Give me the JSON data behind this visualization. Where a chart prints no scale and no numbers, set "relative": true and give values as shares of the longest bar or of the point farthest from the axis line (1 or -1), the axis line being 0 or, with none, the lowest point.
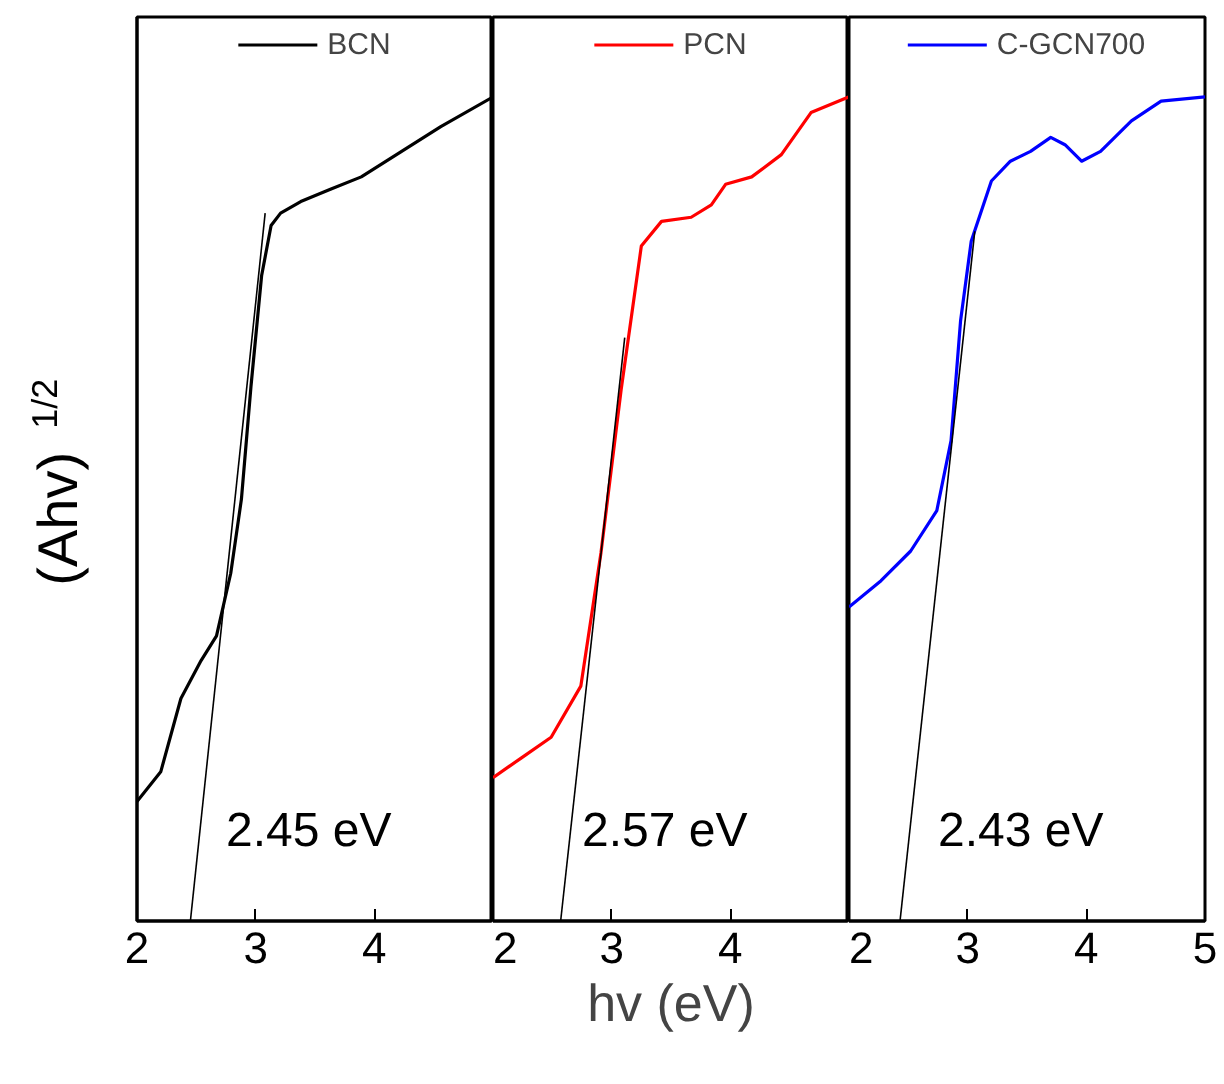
{
  "chart_data": [
    {
      "type": "line",
      "relative": true,
      "xlim": [
        2,
        5
      ],
      "xticks": [
        2,
        3,
        4,
        {
          "value": 5,
          "label": null
        }
      ],
      "tick_labels": "x",
      "legend": "top",
      "ylabel": "(Ahv)$^{1/2}$",
      "series": [
        {
          "name": "BCN",
          "color": "#000000",
          "x": [
            2.0,
            2.2,
            2.37,
            2.54,
            2.67,
            2.79,
            2.88,
            2.96,
            3.05,
            3.13,
            3.21,
            3.38,
            3.63,
            3.89,
            4.22,
            4.56,
            5.0
          ],
          "values": [
            0.145,
            0.181,
            0.27,
            0.316,
            0.346,
            0.422,
            0.512,
            0.648,
            0.783,
            0.844,
            0.859,
            0.873,
            0.888,
            0.903,
            0.933,
            0.964,
            1.0
          ]
        },
        {
          "type": "line",
          "color": "#000000",
          "x": [
            2.45,
            3.08
          ],
          "values": [
            0,
            0.859
          ]
        }
      ],
      "annotations": [
        "2.45 eV"
      ]
    },
    {
      "type": "line",
      "relative": true,
      "xlim": [
        2,
        5
      ],
      "xticks": [
        2,
        3,
        4,
        {
          "value": 5,
          "label": null
        }
      ],
      "tick_labels": "x",
      "legend": "top",
      "xlabel": "hv (eV)",
      "series": [
        {
          "name": "PCN",
          "color": "#ff0000",
          "x": [
            2.0,
            2.24,
            2.49,
            2.74,
            2.91,
            3.08,
            3.25,
            3.42,
            3.67,
            3.84,
            3.96,
            4.18,
            4.43,
            4.68,
            5.0
          ],
          "values": [
            0.174,
            0.198,
            0.223,
            0.285,
            0.447,
            0.645,
            0.819,
            0.849,
            0.854,
            0.869,
            0.894,
            0.903,
            0.93,
            0.981,
            1.0
          ]
        },
        {
          "type": "line",
          "color": "#000000",
          "x": [
            2.57,
            3.11
          ],
          "values": [
            0,
            0.708
          ]
        }
      ],
      "annotations": [
        "2.57 eV"
      ]
    },
    {
      "type": "line",
      "relative": true,
      "xlim": [
        2,
        5
      ],
      "xticks": [
        2,
        3,
        4,
        5
      ],
      "tick_labels": "x",
      "legend": "top",
      "series": [
        {
          "name": "C-GCN700",
          "color": "#0000ff",
          "x": [
            2.0,
            2.27,
            2.52,
            2.74,
            2.86,
            2.94,
            3.03,
            3.2,
            3.36,
            3.53,
            3.7,
            3.82,
            3.96,
            4.12,
            4.38,
            4.63,
            5.0
          ],
          "values": [
            0.381,
            0.413,
            0.449,
            0.498,
            0.583,
            0.728,
            0.825,
            0.898,
            0.922,
            0.934,
            0.951,
            0.942,
            0.922,
            0.934,
            0.971,
            0.995,
            1.0
          ]
        },
        {
          "type": "line",
          "color": "#000000",
          "x": [
            2.43,
            3.06
          ],
          "values": [
            0,
            0.837
          ]
        }
      ],
      "annotations": [
        "2.43 eV"
      ]
    }
  ]
}
